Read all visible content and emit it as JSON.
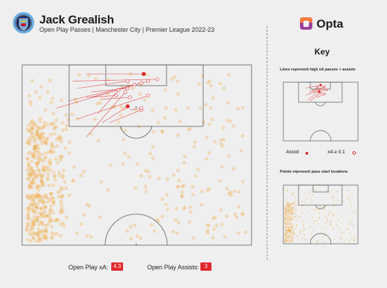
{
  "header": {
    "title": "Jack Grealish",
    "subtitle": "Open Play Passes | Manchester City | Premier League 2022-23",
    "badge_text": "MANCHESTER CITY",
    "badge_year": "CITY"
  },
  "brand": {
    "name": "Opta",
    "accent": "#9c3fa0",
    "orange": "#f37b3f"
  },
  "key": {
    "title": "Key",
    "lines_caption": "Lines represent high xA passes + assists",
    "points_caption": "Points represent pass start locations",
    "assist_label": "Assist",
    "xa_label": "xA ≥ 0.1"
  },
  "stats": {
    "xa_label": "Open Play xA:",
    "xa_value": "4.3",
    "assists_label": "Open Play Assists:",
    "assists_value": "3"
  },
  "colors": {
    "background": "#efefef",
    "pitch_line": "#555555",
    "point": "#f2b155",
    "pass_line": "#e03a3f",
    "assist": "#d8262b"
  }
}
